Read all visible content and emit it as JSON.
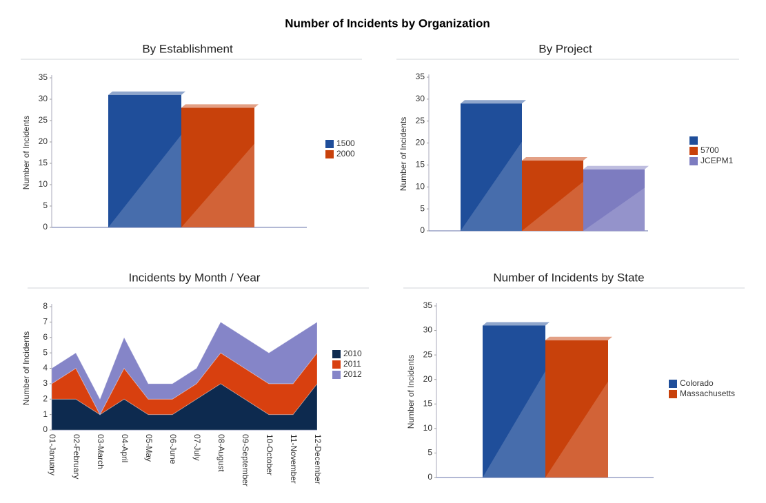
{
  "title": "Number of Incidents by Organization",
  "chart_data": [
    {
      "type": "bar",
      "title": "By Establishment",
      "y_label": "Number of Incidents",
      "series": [
        {
          "name": "1500",
          "color": "#1f4e9a",
          "values": [
            31
          ]
        },
        {
          "name": "2000",
          "color": "#c8410b",
          "values": [
            28
          ]
        }
      ],
      "ylim": [
        0,
        35
      ],
      "yticks": [
        0,
        5,
        10,
        15,
        20,
        25,
        30,
        35
      ]
    },
    {
      "type": "bar",
      "title": "By Project",
      "y_label": "Number of Incidents",
      "series": [
        {
          "name": null,
          "color": "#1f4e9a",
          "values": [
            29
          ]
        },
        {
          "name": "5700",
          "color": "#c8410b",
          "values": [
            16
          ]
        },
        {
          "name": "JCEPM1",
          "color": "#7d7cc0",
          "values": [
            14
          ]
        }
      ],
      "ylim": [
        0,
        35
      ],
      "yticks": [
        0,
        5,
        10,
        15,
        20,
        25,
        30,
        35
      ]
    },
    {
      "type": "area",
      "stacked": true,
      "title": "Incidents by Month / Year",
      "y_label": "Number of Incidents",
      "categories": [
        "01-January",
        "02-February",
        "03-March",
        "04-April",
        "05-May",
        "06-June",
        "07-July",
        "08-August",
        "09-September",
        "10-October",
        "11-November",
        "12-December"
      ],
      "series": [
        {
          "name": "2010",
          "color": "#0d2a4f",
          "values": [
            2,
            2,
            1,
            2,
            1,
            1,
            2,
            3,
            2,
            1,
            1,
            3
          ]
        },
        {
          "name": "2011",
          "color": "#d8400f",
          "values": [
            1,
            2,
            0,
            2,
            1,
            1,
            1,
            2,
            2,
            2,
            2,
            2
          ]
        },
        {
          "name": "2012",
          "color": "#8585c8",
          "values": [
            1,
            1,
            1,
            2,
            1,
            1,
            1,
            2,
            2,
            2,
            3,
            2
          ]
        }
      ],
      "ylim": [
        0,
        8
      ],
      "yticks": [
        0,
        1,
        2,
        3,
        4,
        5,
        6,
        7,
        8
      ]
    },
    {
      "type": "bar",
      "title": "Number of Incidents by State",
      "y_label": "Number of Incidents",
      "series": [
        {
          "name": "Colorado",
          "color": "#1f4e9a",
          "values": [
            31
          ]
        },
        {
          "name": "Massachusetts",
          "color": "#c8410b",
          "values": [
            28
          ]
        }
      ],
      "ylim": [
        0,
        35
      ],
      "yticks": [
        0,
        5,
        10,
        15,
        20,
        25,
        30,
        35
      ]
    }
  ]
}
